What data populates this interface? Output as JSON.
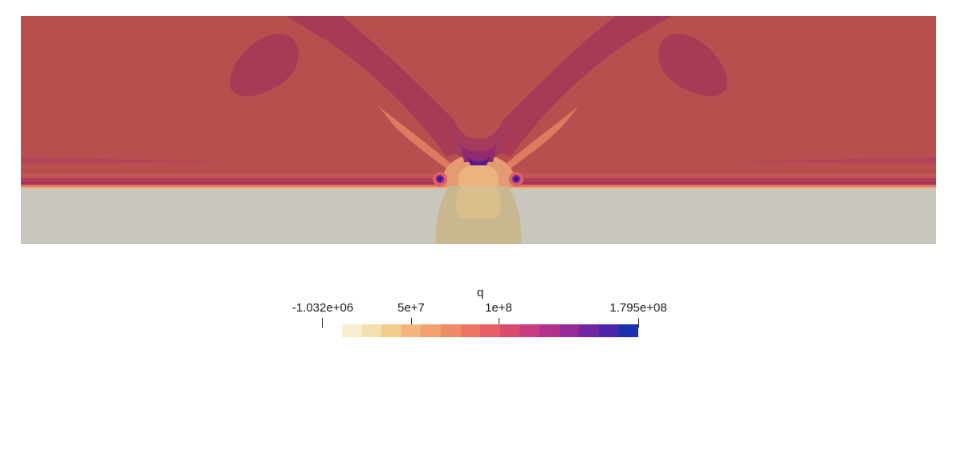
{
  "legend": {
    "title": "q",
    "ticks": [
      {
        "label": "-1.032e+06",
        "value": -1032000
      },
      {
        "label": "5e+7",
        "value": 50000000
      },
      {
        "label": "1e+8",
        "value": 100000000
      },
      {
        "label": "1.795e+08",
        "value": 179500000
      }
    ],
    "range": [
      -1032000,
      179500000
    ],
    "colors": [
      "#f6efcc",
      "#f3e0ae",
      "#f2cc8f",
      "#f3b57c",
      "#f3a070",
      "#f08b67",
      "#ec7564",
      "#e65e67",
      "#dc4a72",
      "#c93c80",
      "#b3318d",
      "#962a98",
      "#7127a3",
      "#4b26ab",
      "#1b31ad"
    ]
  },
  "field": {
    "background_color": "#b94e4f",
    "lower_color": "#c9c6bd",
    "plume_color": "#c7b98d",
    "lobe_color": "#a83a55",
    "ring_color": "#dc5e68",
    "hot_color": "#5a1a8c"
  }
}
